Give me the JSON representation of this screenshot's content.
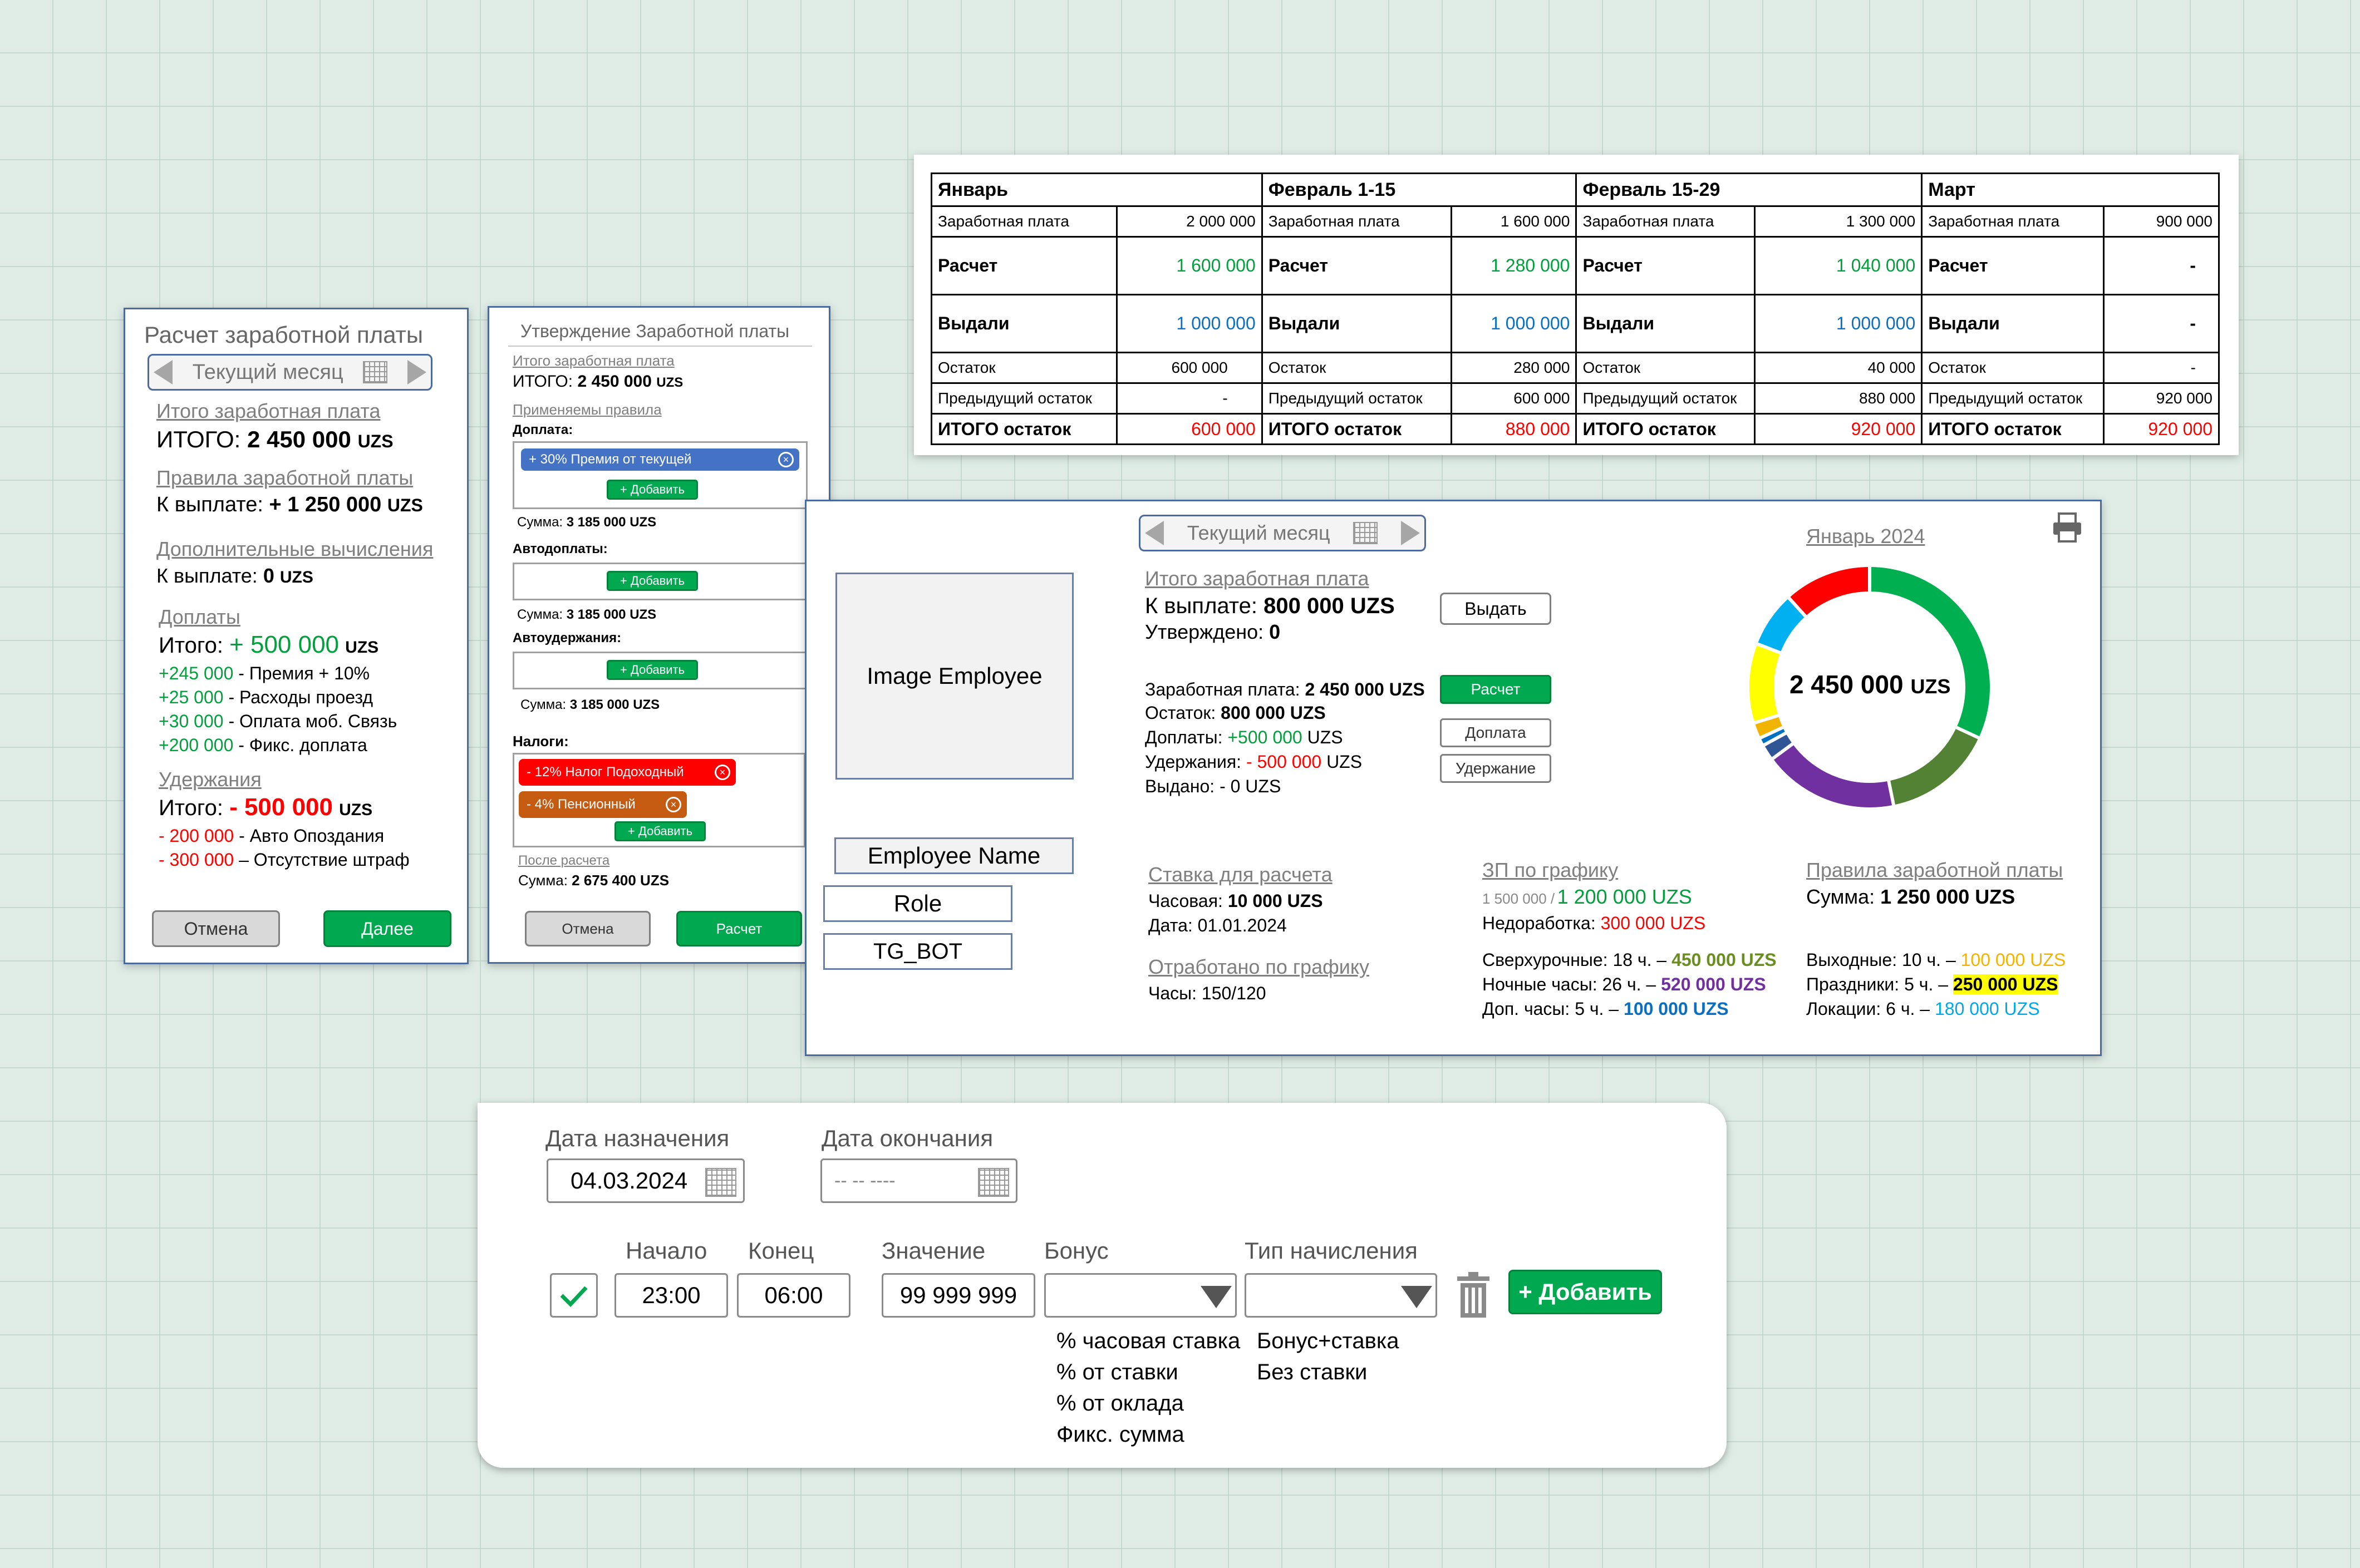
{
  "left_panel": {
    "title": "Расчет заработной платы",
    "month_nav": "Текущий месяц",
    "total_salary_label": "Итого заработная плата",
    "total_label": "ИТОГО:",
    "total_value": "2 450 000",
    "currency": "UZS",
    "rules_label": "Правила заработной платы",
    "payout_label": "К выплате:",
    "rules_payout_value": "+ 1 250 000",
    "extra_label": "Дополнительные вычисления",
    "extra_value": "0",
    "additions_label": "Доплаты",
    "itogo_label": "Итого:",
    "additions_total": "+ 500 000",
    "additions": [
      {
        "amount": "+245 000",
        "desc": "- Премия + 10%"
      },
      {
        "amount": "+25 000",
        "desc": "- Расходы проезд"
      },
      {
        "amount": "+30 000",
        "desc": "- Оплата моб. Связь"
      },
      {
        "amount": "+200 000",
        "desc": "- Фикс. доплата"
      }
    ],
    "deductions_label": "Удержания",
    "deductions_total": "- 500 000",
    "deductions": [
      {
        "amount": "- 200 000",
        "desc": "- Авто Опоздания"
      },
      {
        "amount": "- 300 000",
        "desc": "– Отсутствие штраф"
      }
    ],
    "cancel": "Отмена",
    "next": "Далее"
  },
  "approve_panel": {
    "title": "Утверждение Заработной платы",
    "total_salary_label": "Итого заработная плата",
    "total_label": "ИТОГО:",
    "total_value": "2 450 000",
    "currency": "UZS",
    "applied_rules": "Применяемы правила",
    "dopl_label": "Доплата:",
    "dopl_tag": "+ 30% Премия от текущей",
    "add": "+ Добавить",
    "sum1": "Сумма:",
    "sum1_value": "3 185 000 UZS",
    "auto_dopl_label": "Автодоплаты:",
    "sum2_value": "3 185 000 UZS",
    "auto_ded_label": "Автоудержания:",
    "sum3_value": "3 185 000 UZS",
    "taxes_label": "Налоги:",
    "tax1": "- 12% Налог Подоходный",
    "tax2": "- 4% Пенсионный",
    "after_calc": "После расчета",
    "final_sum_value": "2 675 400 UZS",
    "cancel": "Отмена",
    "calc": "Расчет"
  },
  "salary_table": {
    "months": [
      {
        "name": "Январь",
        "salary": "2 000 000",
        "calc": "1 600 000",
        "issued": "1 000 000",
        "remainder": "600 000",
        "prev": "-",
        "total": "600 000"
      },
      {
        "name": "Февраль 1-15",
        "salary": "1 600 000",
        "calc": "1 280 000",
        "issued": "1 000 000",
        "remainder": "280 000",
        "prev": "600 000",
        "total": "880 000"
      },
      {
        "name": "Ферваль 15-29",
        "salary": "1 300 000",
        "calc": "1 040 000",
        "issued": "1 000 000",
        "remainder": "40 000",
        "prev": "880 000",
        "total": "920 000"
      },
      {
        "name": "Март",
        "salary": "900 000",
        "calc": "-",
        "issued": "-",
        "remainder": "-",
        "prev": "920 000",
        "total": "920 000"
      }
    ],
    "row_labels": {
      "salary": "Заработная плата",
      "calc": "Расчет",
      "issued": "Выдали",
      "remainder": "Остаток",
      "prev": "Предыдущий остаток",
      "total": "ИТОГО остаток"
    }
  },
  "employee_panel": {
    "image": "Image Employee",
    "name": "Employee Name",
    "role": "Role",
    "tg": "TG_BOT",
    "month_nav": "Текущий месяц",
    "total_salary_label": "Итого заработная плата",
    "payout_label": "К выплате:",
    "payout_value": "800 000 UZS",
    "approved_label": "Утверждено:",
    "approved_value": "0",
    "issue_btn": "Выдать",
    "salary_label": "Заработная плата:",
    "salary_value": "2 450 000 UZS",
    "remainder_label": "Остаток:",
    "remainder_value": "800 000 UZS",
    "dopl_label": "Доплаты:",
    "dopl_value": "+500 000",
    "dopl_cur": "UZS",
    "ded_label": "Удержания:",
    "ded_value": "- 500 000",
    "ded_cur": "UZS",
    "issued_label": "Выдано: - 0 UZS",
    "calc_btn": "Расчет",
    "dopl_btn": "Доплата",
    "ded_btn": "Удержание",
    "chart_title": "Январь 2024",
    "chart_center": "2 450 000",
    "chart_center_cur": "UZS",
    "rate_label": "Ставка для расчета",
    "hourly_label": "Часовая:",
    "hourly_value": "10 000 UZS",
    "date_label": "Дата: 01.01.2024",
    "worked_label": "Отработано по графику",
    "hours_label": "Часы: 150/120",
    "schedule_label": "ЗП по графику",
    "schedule_old": "1 500 000 /",
    "schedule_new": "1 200 000 UZS",
    "shortfall_label": "Недоработка:",
    "shortfall_value": "300 000 UZS",
    "overtime_label": "Сверхурочные: 18 ч. –",
    "overtime_value": "450 000 UZS",
    "night_label": "Ночные часы: 26 ч. –",
    "night_value": "520 000 UZS",
    "extra_label": "Доп. часы: 5 ч. –",
    "extra_value": "100 000 UZS",
    "rules_label": "Правила заработной платы",
    "rules_sum_label": "Сумма:",
    "rules_sum_value": "1 250 000 UZS",
    "weekend_label": "Выходные: 10 ч. –",
    "weekend_value": "100 000 UZS",
    "holiday_label": "Праздники: 5 ч. –",
    "holiday_value": "250 000 UZS",
    "location_label": "Локации: 6 ч. –",
    "location_value": "180 000 UZS",
    "donut": [
      {
        "color": "#00b050",
        "value": 30
      },
      {
        "color": "#548235",
        "value": 14
      },
      {
        "color": "#7030a0",
        "value": 17
      },
      {
        "color": "#2f5597",
        "value": 2
      },
      {
        "color": "#0070c0",
        "value": 1
      },
      {
        "color": "#f0b400",
        "value": 2
      },
      {
        "color": "#ffff00",
        "value": 10
      },
      {
        "color": "#00b0f0",
        "value": 7
      },
      {
        "color": "#ff0000",
        "value": 11
      }
    ]
  },
  "rule_form": {
    "start_date_label": "Дата назначения",
    "start_date_value": "04.03.2024",
    "end_date_label": "Дата окончания",
    "end_date_placeholder": "-- -- ----",
    "begin_label": "Начало",
    "begin_value": "23:00",
    "end_label": "Конец",
    "end_value": "06:00",
    "value_label": "Значение",
    "value_value": "99 999 999",
    "bonus_label": "Бонус",
    "type_label": "Тип начисления",
    "add_btn": "+ Добавить",
    "bonus_options": [
      "% часовая ставка",
      "% от ставки",
      "% от оклада",
      "Фикс. сумма"
    ],
    "type_options": [
      "Бонус+ставка",
      "Без ставки"
    ]
  }
}
